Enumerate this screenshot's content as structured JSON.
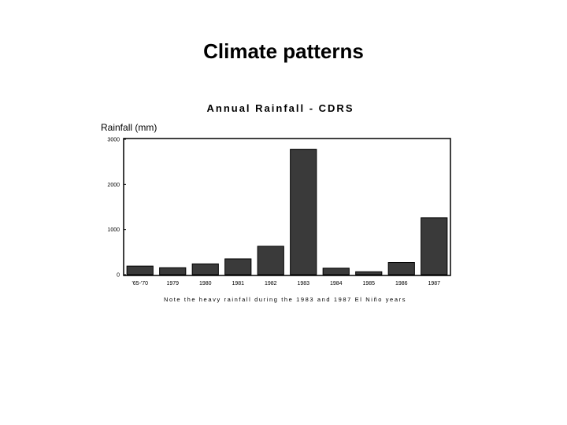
{
  "slide": {
    "title": "Climate patterns"
  },
  "chart_data": {
    "type": "bar",
    "title": "Annual Rainfall - CDRS",
    "ylabel": "Rainfall (mm)",
    "xlabel": "",
    "ylim": [
      0,
      3000
    ],
    "yticks": [
      0,
      1000,
      2000,
      3000
    ],
    "categories": [
      "'65-'70",
      "1979",
      "1980",
      "1981",
      "1982",
      "1983",
      "1984",
      "1985",
      "1986",
      "1987"
    ],
    "values": [
      190,
      155,
      240,
      350,
      630,
      2780,
      145,
      65,
      270,
      1260
    ],
    "note": "Note the heavy rainfall during the 1983 and 1987 El Niño years",
    "grid": false,
    "legend": "none",
    "bar_color": "#3a3a3a"
  }
}
